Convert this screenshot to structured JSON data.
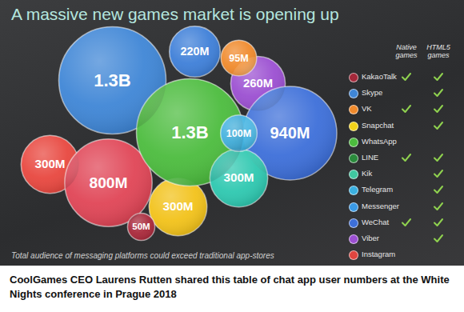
{
  "chart_data": {
    "type": "bubble",
    "title": "A massive new games market is opening up",
    "values": [
      1300,
      220,
      260,
      95,
      940,
      300,
      800,
      300,
      50,
      1300,
      300,
      100
    ],
    "value_labels": [
      "1.3B",
      "220M",
      "260M",
      "95M",
      "940M",
      "300M",
      "800M",
      "300M",
      "50M",
      "1.3B",
      "300M",
      "100M"
    ],
    "colors": [
      "#3f86d6",
      "#3e7fd8",
      "#9b4fd1",
      "#f08a2c",
      "#3d6fd9",
      "#e8473f",
      "#e04556",
      "#f2c21a",
      "#a8283a",
      "#4cbc3e",
      "#2ec8b0",
      "#3bb0e0"
    ],
    "data_labels": true,
    "tick_labels": false,
    "legend": "right",
    "platform_columns": [
      "Native games",
      "HTML5 games"
    ],
    "platforms": [
      {
        "name": "KakaoTalk",
        "color": "#a3283a",
        "native_games": true,
        "html5_games": true
      },
      {
        "name": "Skype",
        "color": "#3f86d6",
        "native_games": false,
        "html5_games": true
      },
      {
        "name": "VK",
        "color": "#f08a2c",
        "native_games": true,
        "html5_games": true
      },
      {
        "name": "Snapchat",
        "color": "#f2d21a",
        "native_games": false,
        "html5_games": true
      },
      {
        "name": "WhatsApp",
        "color": "#4cbc3e",
        "native_games": false,
        "html5_games": false
      },
      {
        "name": "LINE",
        "color": "#2a8a3c",
        "native_games": true,
        "html5_games": true
      },
      {
        "name": "Kik",
        "color": "#40c8a0",
        "native_games": false,
        "html5_games": true
      },
      {
        "name": "Telegram",
        "color": "#3bb0e0",
        "native_games": false,
        "html5_games": true
      },
      {
        "name": "Messenger",
        "color": "#3a9ae6",
        "native_games": false,
        "html5_games": true
      },
      {
        "name": "WeChat",
        "color": "#3d6fd9",
        "native_games": true,
        "html5_games": true
      },
      {
        "name": "Viber",
        "color": "#9b4fd1",
        "native_games": false,
        "html5_games": true
      },
      {
        "name": "Instagram",
        "color": "#e0453f",
        "native_games": false,
        "html5_games": false
      }
    ],
    "footnote": "Total audience of messaging platforms could exceed traditional app-stores",
    "caption": "CoolGames CEO Laurens Rutten shared this table of chat app user numbers at the White Nights conference in Prague 2018"
  }
}
